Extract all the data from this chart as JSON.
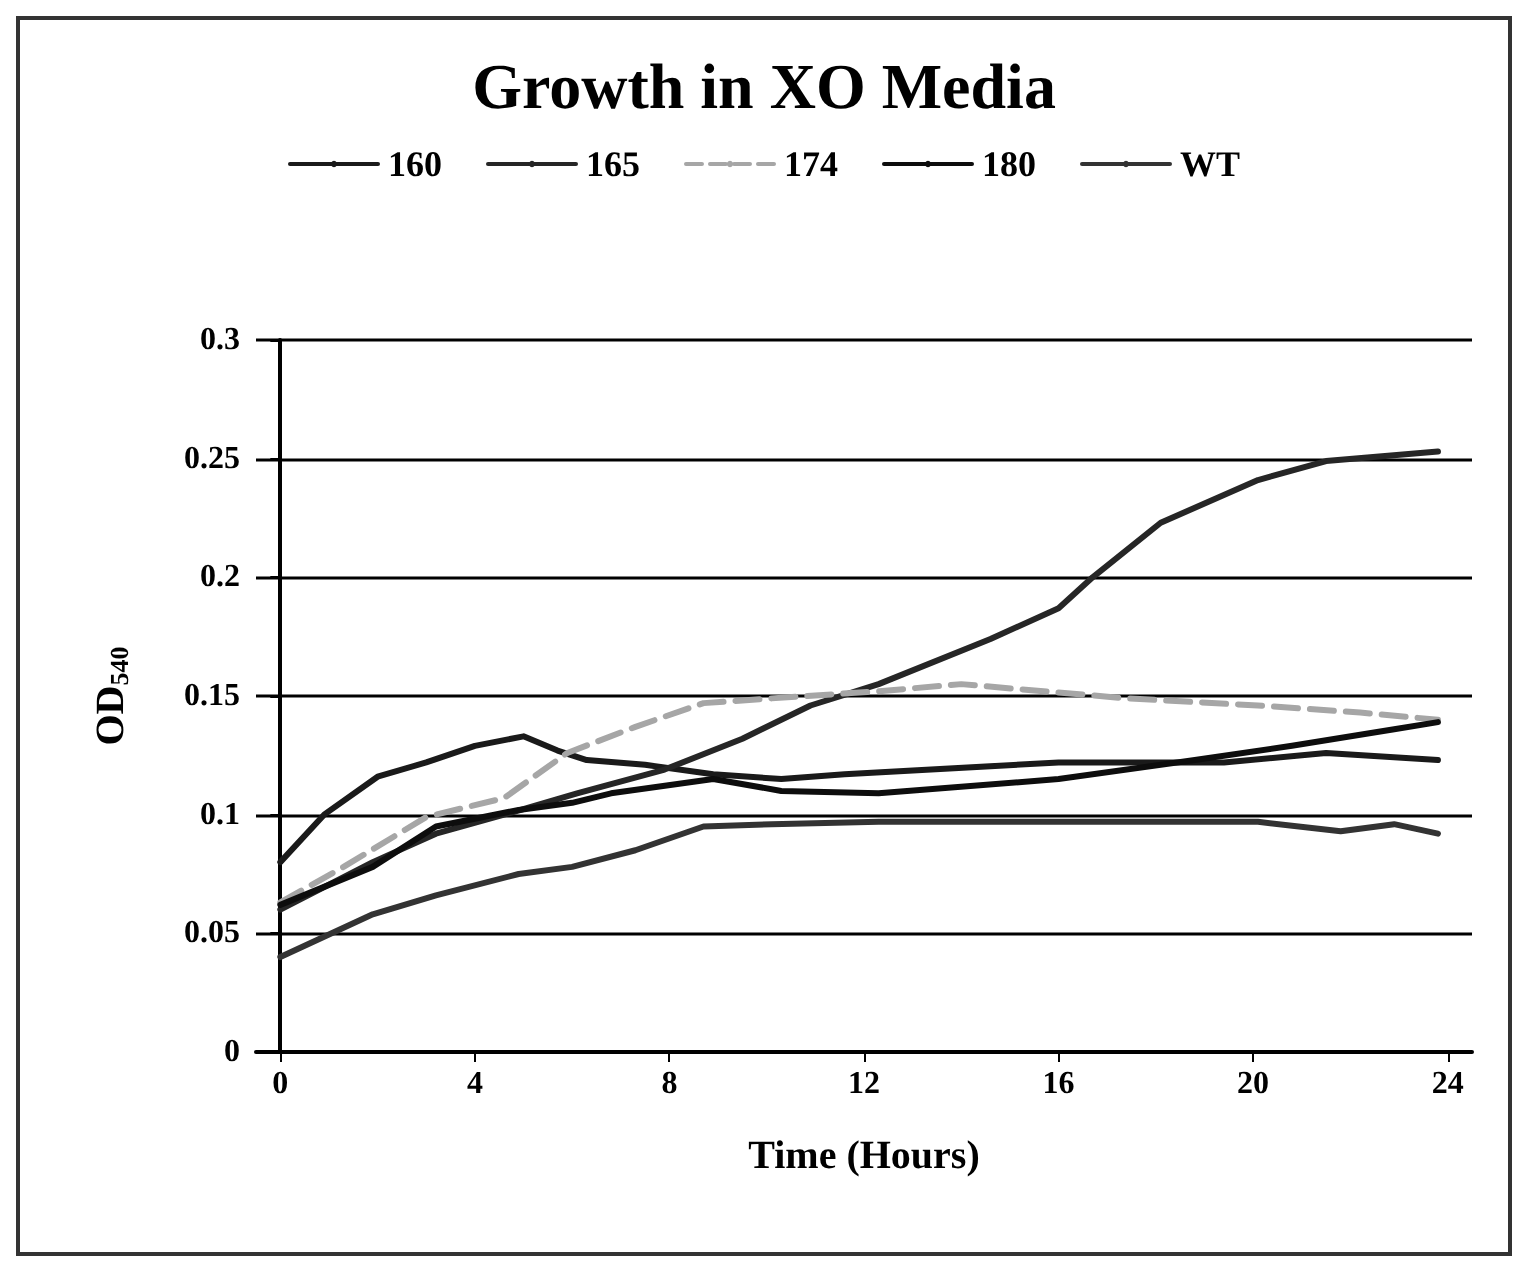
{
  "chart_data": {
    "type": "line",
    "title": "Growth in XO Media",
    "xlabel": "Time (Hours)",
    "ylabel": "OD$_{540}$",
    "xlim": [
      -0.5,
      24.5
    ],
    "xticks": [
      0,
      4,
      8,
      12,
      16,
      20,
      24
    ],
    "ylim": [
      0,
      0.3
    ],
    "yticks": [
      0,
      0.05,
      0.1,
      0.15,
      0.2,
      0.25,
      0.3
    ],
    "grid": "y",
    "legend": "top",
    "marker": "none",
    "line_style": "solid",
    "series": [
      {
        "name": "160",
        "color": "#1a1a1a",
        "x": [
          0,
          0.9,
          2,
          3,
          4,
          5,
          5.7,
          6.3,
          7.5,
          8.9,
          10.3,
          11.6,
          16,
          19.4,
          21.5,
          23.8
        ],
        "values": [
          0.08,
          0.1,
          0.116,
          0.122,
          0.129,
          0.133,
          0.127,
          0.123,
          0.121,
          0.117,
          0.115,
          0.117,
          0.122,
          0.122,
          0.126,
          0.123
        ]
      },
      {
        "name": "165",
        "color": "#262626",
        "x": [
          0,
          1.9,
          3.2,
          4.6,
          6.1,
          7.9,
          9.5,
          10.9,
          12.3,
          14.6,
          16,
          16.7,
          18.1,
          20.1,
          21.5,
          23.8
        ],
        "values": [
          0.06,
          0.08,
          0.092,
          0.1,
          0.109,
          0.119,
          0.132,
          0.146,
          0.155,
          0.174,
          0.187,
          0.2,
          0.223,
          0.241,
          0.249,
          0.253
        ]
      },
      {
        "name": "174",
        "color": "#a6a6a6",
        "line_style": "dashed",
        "x": [
          0,
          1.3,
          3,
          4.6,
          5.9,
          7.3,
          8.7,
          10.1,
          12.3,
          14,
          17.4,
          20.1,
          22.2,
          23.8
        ],
        "values": [
          0.063,
          0.078,
          0.099,
          0.107,
          0.126,
          0.137,
          0.147,
          0.149,
          0.152,
          0.155,
          0.149,
          0.146,
          0.143,
          0.14
        ]
      },
      {
        "name": "180",
        "color": "#0d0d0d",
        "x": [
          0,
          1.9,
          3.2,
          4.9,
          6,
          6.8,
          8.9,
          10.3,
          12.3,
          16,
          18.8,
          20.8,
          22.9,
          23.8
        ],
        "values": [
          0.062,
          0.078,
          0.095,
          0.102,
          0.105,
          0.109,
          0.115,
          0.11,
          0.109,
          0.115,
          0.123,
          0.129,
          0.136,
          0.139
        ]
      },
      {
        "name": "WT",
        "color": "#333333",
        "x": [
          0,
          1.9,
          3.2,
          4.9,
          6,
          7.3,
          8.7,
          10.1,
          12.3,
          14.6,
          17.4,
          20.1,
          21.8,
          22.9,
          23.8
        ],
        "values": [
          0.04,
          0.058,
          0.066,
          0.075,
          0.078,
          0.085,
          0.095,
          0.096,
          0.097,
          0.097,
          0.097,
          0.097,
          0.093,
          0.096,
          0.092
        ]
      }
    ]
  }
}
